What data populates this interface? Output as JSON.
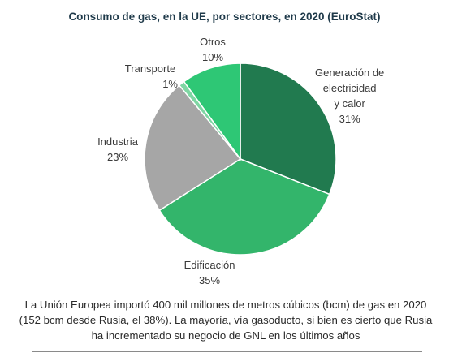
{
  "chart_data": {
    "type": "pie",
    "title": "Consumo de gas, en la UE, por sectores, en 2020 (EuroStat)",
    "slices": [
      {
        "name": "Generación de electricidad y calor",
        "lines": [
          "Generación de",
          "electricidad",
          "y calor"
        ],
        "value": 31,
        "label": "31%",
        "color": "#217a4f"
      },
      {
        "name": "Edificación",
        "lines": [
          "Edificación"
        ],
        "value": 35,
        "label": "35%",
        "color": "#33b56b"
      },
      {
        "name": "Industria",
        "lines": [
          "Industria"
        ],
        "value": 23,
        "label": "23%",
        "color": "#a6a6a6"
      },
      {
        "name": "Transporte",
        "lines": [
          "Transporte"
        ],
        "value": 1,
        "label": "1%",
        "color": "#7fd6a3"
      },
      {
        "name": "Otros",
        "lines": [
          "Otros"
        ],
        "value": 10,
        "label": "10%",
        "color": "#2ec775"
      }
    ]
  },
  "caption": "La Unión Europea importó 400 mil millones de metros cúbicos (bcm) de gas en 2020 (152 bcm desde Rusia, el 38%). La mayoría, vía gasoducto, si bien es cierto que Rusia ha incrementado su negocio de GNL en los últimos años"
}
